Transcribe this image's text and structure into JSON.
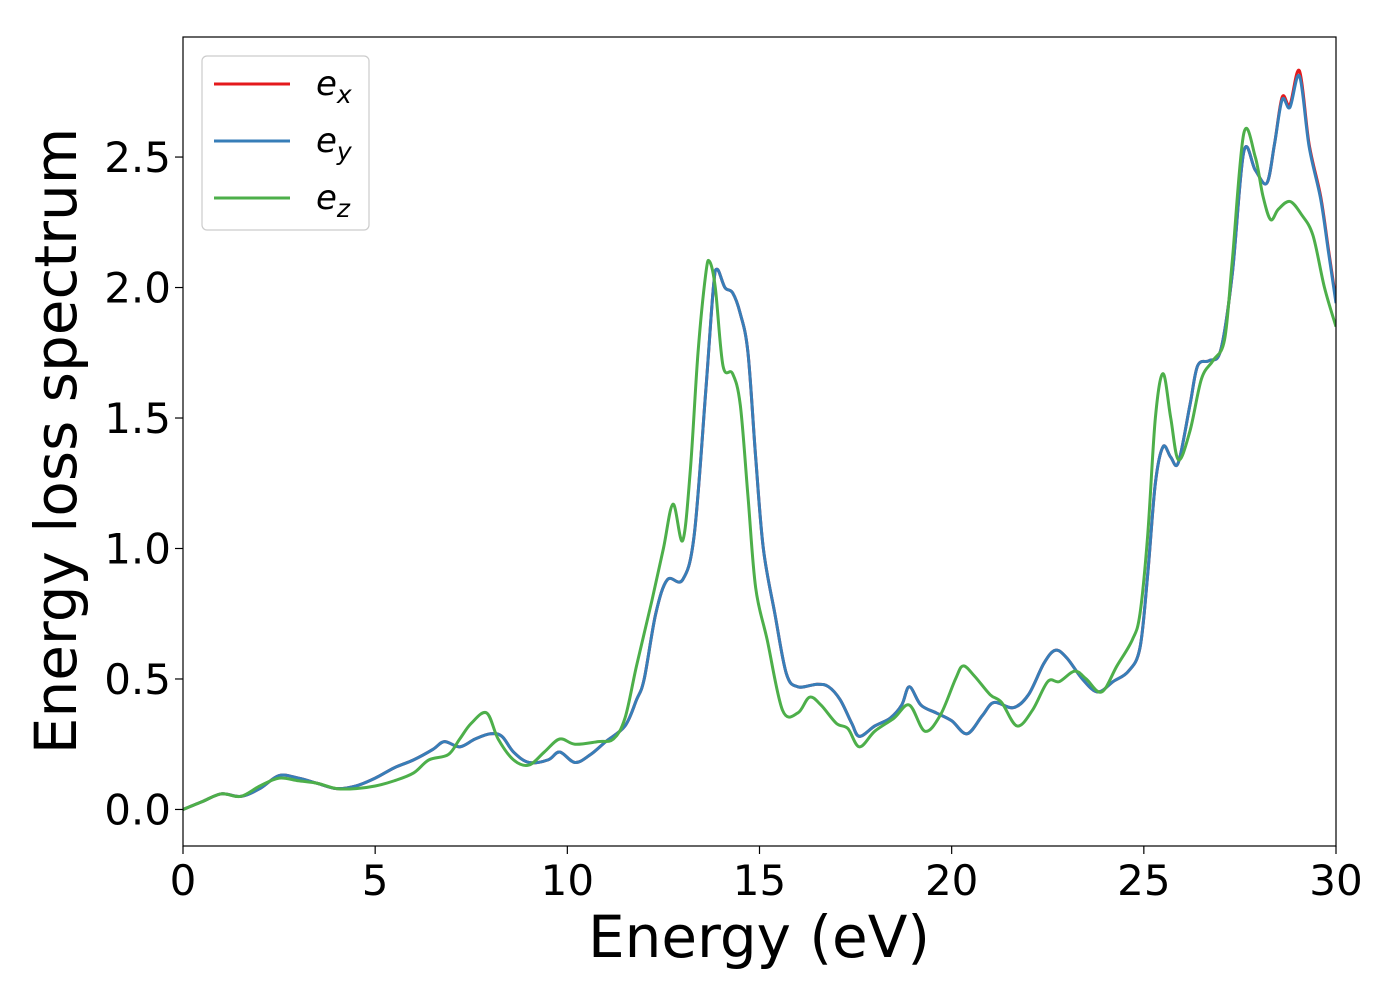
{
  "chart_data": {
    "type": "line",
    "title": "",
    "xlabel": "Energy (eV)",
    "ylabel": "Energy loss spectrum",
    "xlim": [
      0,
      30
    ],
    "ylim": [
      -0.14,
      2.96
    ],
    "xticks": [
      0,
      5,
      10,
      15,
      20,
      25,
      30
    ],
    "yticks": [
      0.0,
      0.5,
      1.0,
      1.5,
      2.0,
      2.5
    ],
    "xtick_labels": [
      "0",
      "5",
      "10",
      "15",
      "20",
      "25",
      "30"
    ],
    "ytick_labels": [
      "0.0",
      "0.5",
      "1.0",
      "1.5",
      "2.0",
      "2.5"
    ],
    "grid": false,
    "legend_position": "upper-left",
    "series": [
      {
        "name": "e",
        "subscript": "x",
        "color": "#e41a1c",
        "points": [
          [
            0,
            0
          ],
          [
            0.5,
            0.03
          ],
          [
            1,
            0.06
          ],
          [
            1.5,
            0.05
          ],
          [
            2,
            0.08
          ],
          [
            2.5,
            0.13
          ],
          [
            3,
            0.12
          ],
          [
            3.5,
            0.1
          ],
          [
            4,
            0.08
          ],
          [
            4.5,
            0.09
          ],
          [
            5,
            0.12
          ],
          [
            5.5,
            0.16
          ],
          [
            6,
            0.19
          ],
          [
            6.5,
            0.23
          ],
          [
            6.8,
            0.26
          ],
          [
            7.2,
            0.24
          ],
          [
            7.6,
            0.27
          ],
          [
            8,
            0.29
          ],
          [
            8.3,
            0.28
          ],
          [
            8.6,
            0.22
          ],
          [
            9,
            0.18
          ],
          [
            9.5,
            0.19
          ],
          [
            9.8,
            0.22
          ],
          [
            10.2,
            0.18
          ],
          [
            10.6,
            0.21
          ],
          [
            11,
            0.26
          ],
          [
            11.5,
            0.32
          ],
          [
            11.8,
            0.42
          ],
          [
            12,
            0.5
          ],
          [
            12.3,
            0.75
          ],
          [
            12.6,
            0.88
          ],
          [
            13,
            0.88
          ],
          [
            13.3,
            1.05
          ],
          [
            13.6,
            1.6
          ],
          [
            13.8,
            2.0
          ],
          [
            13.9,
            2.07
          ],
          [
            14.1,
            2.0
          ],
          [
            14.3,
            1.98
          ],
          [
            14.5,
            1.9
          ],
          [
            14.7,
            1.75
          ],
          [
            14.9,
            1.35
          ],
          [
            15.1,
            1.0
          ],
          [
            15.4,
            0.75
          ],
          [
            15.7,
            0.52
          ],
          [
            16,
            0.47
          ],
          [
            16.5,
            0.48
          ],
          [
            16.8,
            0.47
          ],
          [
            17.1,
            0.42
          ],
          [
            17.4,
            0.33
          ],
          [
            17.6,
            0.28
          ],
          [
            18,
            0.32
          ],
          [
            18.4,
            0.35
          ],
          [
            18.7,
            0.4
          ],
          [
            18.9,
            0.47
          ],
          [
            19.2,
            0.4
          ],
          [
            19.6,
            0.37
          ],
          [
            20,
            0.34
          ],
          [
            20.4,
            0.29
          ],
          [
            20.8,
            0.36
          ],
          [
            21.1,
            0.41
          ],
          [
            21.6,
            0.39
          ],
          [
            22,
            0.44
          ],
          [
            22.4,
            0.56
          ],
          [
            22.7,
            0.61
          ],
          [
            23,
            0.58
          ],
          [
            23.4,
            0.5
          ],
          [
            23.8,
            0.45
          ],
          [
            24.2,
            0.49
          ],
          [
            24.6,
            0.53
          ],
          [
            24.9,
            0.62
          ],
          [
            25.1,
            0.9
          ],
          [
            25.3,
            1.25
          ],
          [
            25.5,
            1.39
          ],
          [
            25.7,
            1.35
          ],
          [
            25.9,
            1.33
          ],
          [
            26.2,
            1.55
          ],
          [
            26.4,
            1.7
          ],
          [
            26.7,
            1.72
          ],
          [
            27,
            1.76
          ],
          [
            27.3,
            2.05
          ],
          [
            27.6,
            2.52
          ],
          [
            27.9,
            2.45
          ],
          [
            28.2,
            2.4
          ],
          [
            28.4,
            2.55
          ],
          [
            28.6,
            2.73
          ],
          [
            28.8,
            2.7
          ],
          [
            29.05,
            2.83
          ],
          [
            29.3,
            2.55
          ],
          [
            29.6,
            2.35
          ],
          [
            29.8,
            2.15
          ],
          [
            30,
            1.95
          ]
        ]
      },
      {
        "name": "e",
        "subscript": "y",
        "color": "#377eb8",
        "points": [
          [
            0,
            0
          ],
          [
            0.5,
            0.03
          ],
          [
            1,
            0.06
          ],
          [
            1.5,
            0.05
          ],
          [
            2,
            0.08
          ],
          [
            2.5,
            0.13
          ],
          [
            3,
            0.12
          ],
          [
            3.5,
            0.1
          ],
          [
            4,
            0.08
          ],
          [
            4.5,
            0.09
          ],
          [
            5,
            0.12
          ],
          [
            5.5,
            0.16
          ],
          [
            6,
            0.19
          ],
          [
            6.5,
            0.23
          ],
          [
            6.8,
            0.26
          ],
          [
            7.2,
            0.24
          ],
          [
            7.6,
            0.27
          ],
          [
            8,
            0.29
          ],
          [
            8.3,
            0.28
          ],
          [
            8.6,
            0.22
          ],
          [
            9,
            0.18
          ],
          [
            9.5,
            0.19
          ],
          [
            9.8,
            0.22
          ],
          [
            10.2,
            0.18
          ],
          [
            10.6,
            0.21
          ],
          [
            11,
            0.26
          ],
          [
            11.5,
            0.32
          ],
          [
            11.8,
            0.42
          ],
          [
            12,
            0.5
          ],
          [
            12.3,
            0.75
          ],
          [
            12.6,
            0.88
          ],
          [
            13,
            0.88
          ],
          [
            13.3,
            1.05
          ],
          [
            13.6,
            1.6
          ],
          [
            13.8,
            2.0
          ],
          [
            13.9,
            2.07
          ],
          [
            14.1,
            2.0
          ],
          [
            14.3,
            1.98
          ],
          [
            14.5,
            1.9
          ],
          [
            14.7,
            1.75
          ],
          [
            14.9,
            1.35
          ],
          [
            15.1,
            1.0
          ],
          [
            15.4,
            0.75
          ],
          [
            15.7,
            0.52
          ],
          [
            16,
            0.47
          ],
          [
            16.5,
            0.48
          ],
          [
            16.8,
            0.47
          ],
          [
            17.1,
            0.42
          ],
          [
            17.4,
            0.33
          ],
          [
            17.6,
            0.28
          ],
          [
            18,
            0.32
          ],
          [
            18.4,
            0.35
          ],
          [
            18.7,
            0.4
          ],
          [
            18.9,
            0.47
          ],
          [
            19.2,
            0.4
          ],
          [
            19.6,
            0.37
          ],
          [
            20,
            0.34
          ],
          [
            20.4,
            0.29
          ],
          [
            20.8,
            0.36
          ],
          [
            21.1,
            0.41
          ],
          [
            21.6,
            0.39
          ],
          [
            22,
            0.44
          ],
          [
            22.4,
            0.56
          ],
          [
            22.7,
            0.61
          ],
          [
            23,
            0.58
          ],
          [
            23.4,
            0.5
          ],
          [
            23.8,
            0.45
          ],
          [
            24.2,
            0.49
          ],
          [
            24.6,
            0.53
          ],
          [
            24.9,
            0.62
          ],
          [
            25.1,
            0.9
          ],
          [
            25.3,
            1.25
          ],
          [
            25.5,
            1.39
          ],
          [
            25.7,
            1.35
          ],
          [
            25.9,
            1.33
          ],
          [
            26.2,
            1.55
          ],
          [
            26.4,
            1.7
          ],
          [
            26.7,
            1.72
          ],
          [
            27,
            1.76
          ],
          [
            27.3,
            2.05
          ],
          [
            27.6,
            2.52
          ],
          [
            27.9,
            2.45
          ],
          [
            28.2,
            2.4
          ],
          [
            28.4,
            2.55
          ],
          [
            28.6,
            2.72
          ],
          [
            28.8,
            2.69
          ],
          [
            29.05,
            2.81
          ],
          [
            29.3,
            2.54
          ],
          [
            29.6,
            2.34
          ],
          [
            29.8,
            2.14
          ],
          [
            30,
            1.94
          ]
        ]
      },
      {
        "name": "e",
        "subscript": "z",
        "color": "#4daf4a",
        "points": [
          [
            0,
            0
          ],
          [
            0.5,
            0.03
          ],
          [
            1,
            0.06
          ],
          [
            1.5,
            0.05
          ],
          [
            2,
            0.09
          ],
          [
            2.5,
            0.12
          ],
          [
            3,
            0.11
          ],
          [
            3.5,
            0.1
          ],
          [
            4,
            0.08
          ],
          [
            4.5,
            0.08
          ],
          [
            5,
            0.09
          ],
          [
            5.5,
            0.11
          ],
          [
            6,
            0.14
          ],
          [
            6.4,
            0.19
          ],
          [
            6.9,
            0.21
          ],
          [
            7.2,
            0.27
          ],
          [
            7.5,
            0.33
          ],
          [
            7.9,
            0.37
          ],
          [
            8.2,
            0.27
          ],
          [
            8.6,
            0.19
          ],
          [
            9,
            0.17
          ],
          [
            9.4,
            0.22
          ],
          [
            9.8,
            0.27
          ],
          [
            10.2,
            0.25
          ],
          [
            10.8,
            0.26
          ],
          [
            11.2,
            0.27
          ],
          [
            11.5,
            0.35
          ],
          [
            11.8,
            0.55
          ],
          [
            12.2,
            0.8
          ],
          [
            12.5,
            1.0
          ],
          [
            12.75,
            1.17
          ],
          [
            13,
            1.03
          ],
          [
            13.2,
            1.3
          ],
          [
            13.4,
            1.75
          ],
          [
            13.6,
            2.05
          ],
          [
            13.7,
            2.1
          ],
          [
            13.85,
            2.0
          ],
          [
            14.05,
            1.7
          ],
          [
            14.3,
            1.67
          ],
          [
            14.5,
            1.55
          ],
          [
            14.7,
            1.2
          ],
          [
            14.9,
            0.85
          ],
          [
            15.2,
            0.65
          ],
          [
            15.6,
            0.38
          ],
          [
            16,
            0.37
          ],
          [
            16.3,
            0.43
          ],
          [
            16.6,
            0.4
          ],
          [
            17,
            0.33
          ],
          [
            17.3,
            0.31
          ],
          [
            17.6,
            0.24
          ],
          [
            18,
            0.3
          ],
          [
            18.5,
            0.35
          ],
          [
            18.9,
            0.4
          ],
          [
            19.3,
            0.3
          ],
          [
            19.7,
            0.36
          ],
          [
            20.1,
            0.5
          ],
          [
            20.3,
            0.55
          ],
          [
            20.6,
            0.51
          ],
          [
            21,
            0.44
          ],
          [
            21.3,
            0.41
          ],
          [
            21.7,
            0.32
          ],
          [
            22.1,
            0.38
          ],
          [
            22.5,
            0.49
          ],
          [
            22.8,
            0.49
          ],
          [
            23.2,
            0.53
          ],
          [
            23.5,
            0.5
          ],
          [
            23.9,
            0.45
          ],
          [
            24.3,
            0.55
          ],
          [
            24.7,
            0.65
          ],
          [
            24.9,
            0.75
          ],
          [
            25.1,
            1.05
          ],
          [
            25.3,
            1.5
          ],
          [
            25.5,
            1.67
          ],
          [
            25.7,
            1.5
          ],
          [
            25.9,
            1.34
          ],
          [
            26.2,
            1.45
          ],
          [
            26.5,
            1.65
          ],
          [
            26.8,
            1.72
          ],
          [
            27.1,
            1.8
          ],
          [
            27.3,
            2.1
          ],
          [
            27.6,
            2.59
          ],
          [
            27.9,
            2.5
          ],
          [
            28.1,
            2.35
          ],
          [
            28.3,
            2.26
          ],
          [
            28.5,
            2.3
          ],
          [
            28.8,
            2.33
          ],
          [
            29.1,
            2.28
          ],
          [
            29.4,
            2.2
          ],
          [
            29.7,
            2.0
          ],
          [
            30,
            1.85
          ]
        ]
      }
    ]
  }
}
